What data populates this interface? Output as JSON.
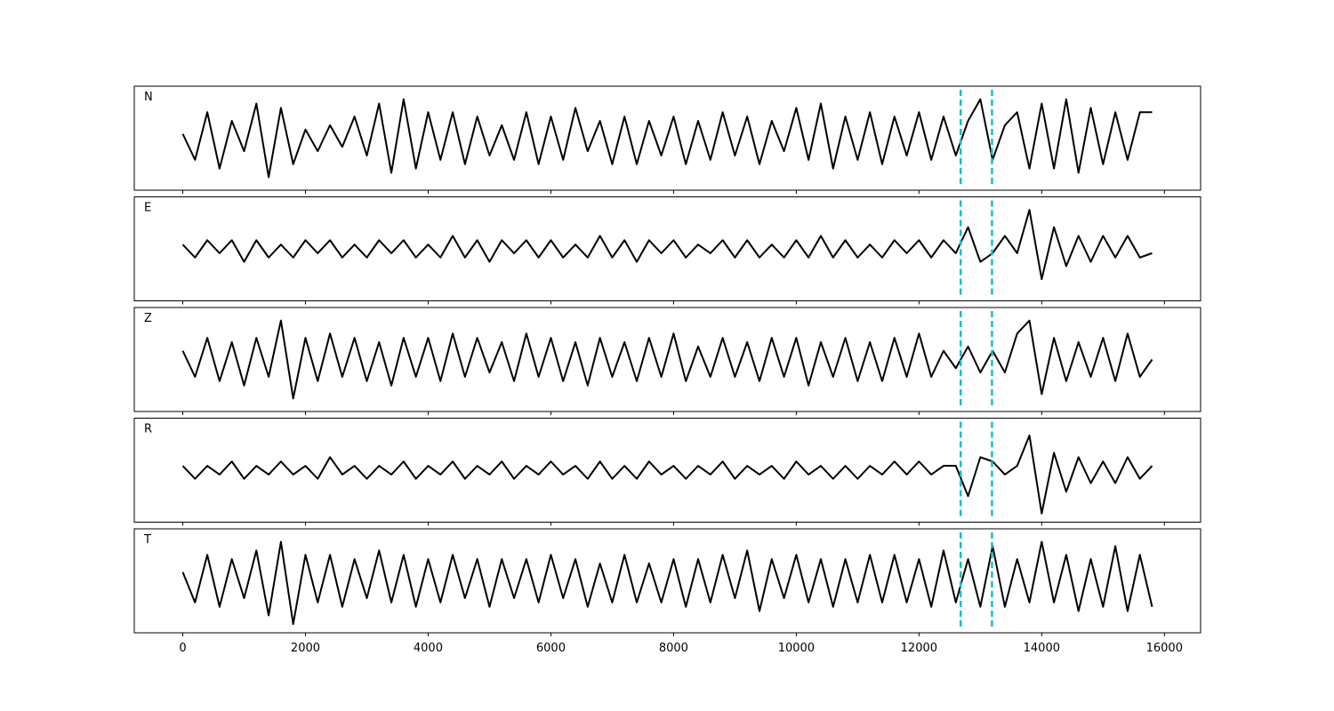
{
  "chart_data": [
    {
      "type": "line",
      "label": "N",
      "color": "#000000",
      "vlines": [
        12680,
        13190
      ],
      "vline_color": "#17becf",
      "xlim": [
        -790,
        16590
      ],
      "ylim": [
        -1.2,
        1.2
      ],
      "xticks": [
        0,
        2000,
        4000,
        6000,
        8000,
        10000,
        12000,
        14000,
        16000
      ],
      "x": [
        0,
        200,
        400,
        600,
        800,
        1000,
        1200,
        1400,
        1600,
        1800,
        2000,
        2200,
        2400,
        2600,
        2800,
        3000,
        3200,
        3400,
        3600,
        3800,
        4000,
        4200,
        4400,
        4600,
        4800,
        5000,
        5200,
        5400,
        5600,
        5800,
        6000,
        6200,
        6400,
        6600,
        6800,
        7000,
        7200,
        7400,
        7600,
        7800,
        8000,
        8200,
        8400,
        8600,
        8800,
        9000,
        9200,
        9400,
        9600,
        9800,
        10000,
        10200,
        10400,
        10600,
        10800,
        11000,
        11200,
        11400,
        11600,
        11800,
        12000,
        12200,
        12400,
        12600,
        12800,
        13000,
        13200,
        13400,
        13600,
        13800,
        14000,
        14200,
        14400,
        14600,
        14800,
        15000,
        15200,
        15400,
        15600,
        15800
      ],
      "values": [
        0.1,
        -0.5,
        0.6,
        -0.7,
        0.4,
        -0.3,
        0.8,
        -0.9,
        0.7,
        -0.6,
        0.2,
        -0.3,
        0.3,
        -0.2,
        0.5,
        -0.4,
        0.8,
        -0.8,
        0.9,
        -0.7,
        0.6,
        -0.5,
        0.6,
        -0.6,
        0.5,
        -0.4,
        0.3,
        -0.5,
        0.6,
        -0.6,
        0.5,
        -0.5,
        0.7,
        -0.3,
        0.4,
        -0.6,
        0.5,
        -0.6,
        0.4,
        -0.4,
        0.5,
        -0.6,
        0.4,
        -0.5,
        0.6,
        -0.4,
        0.5,
        -0.6,
        0.4,
        -0.3,
        0.7,
        -0.5,
        0.8,
        -0.7,
        0.5,
        -0.5,
        0.6,
        -0.6,
        0.5,
        -0.4,
        0.6,
        -0.5,
        0.5,
        -0.4,
        0.4,
        0.9,
        -0.5,
        0.3,
        0.6,
        -0.7,
        0.8,
        -0.7,
        0.9,
        -0.8,
        0.7,
        -0.6,
        0.6,
        -0.5,
        0.6,
        0.6
      ]
    },
    {
      "type": "line",
      "label": "E",
      "color": "#000000",
      "vlines": [
        12680,
        13190
      ],
      "vline_color": "#17becf",
      "xlim": [
        -790,
        16590
      ],
      "ylim": [
        -1.2,
        1.2
      ],
      "xticks": [
        0,
        2000,
        4000,
        6000,
        8000,
        10000,
        12000,
        14000,
        16000
      ],
      "x": [
        0,
        200,
        400,
        600,
        800,
        1000,
        1200,
        1400,
        1600,
        1800,
        2000,
        2200,
        2400,
        2600,
        2800,
        3000,
        3200,
        3400,
        3600,
        3800,
        4000,
        4200,
        4400,
        4600,
        4800,
        5000,
        5200,
        5400,
        5600,
        5800,
        6000,
        6200,
        6400,
        6600,
        6800,
        7000,
        7200,
        7400,
        7600,
        7800,
        8000,
        8200,
        8400,
        8600,
        8800,
        9000,
        9200,
        9400,
        9600,
        9800,
        10000,
        10200,
        10400,
        10600,
        10800,
        11000,
        11200,
        11400,
        11600,
        11800,
        12000,
        12200,
        12400,
        12600,
        12800,
        13000,
        13200,
        13400,
        13600,
        13800,
        14000,
        14200,
        14400,
        14600,
        14800,
        15000,
        15200,
        15400,
        15600,
        15800
      ],
      "values": [
        0.1,
        -0.2,
        0.2,
        -0.1,
        0.2,
        -0.3,
        0.2,
        -0.2,
        0.1,
        -0.2,
        0.2,
        -0.1,
        0.2,
        -0.2,
        0.1,
        -0.2,
        0.2,
        -0.1,
        0.2,
        -0.2,
        0.1,
        -0.2,
        0.3,
        -0.2,
        0.2,
        -0.3,
        0.2,
        -0.1,
        0.2,
        -0.2,
        0.2,
        -0.2,
        0.1,
        -0.2,
        0.3,
        -0.2,
        0.2,
        -0.3,
        0.2,
        -0.1,
        0.2,
        -0.2,
        0.1,
        -0.1,
        0.2,
        -0.2,
        0.2,
        -0.2,
        0.1,
        -0.2,
        0.2,
        -0.2,
        0.3,
        -0.2,
        0.2,
        -0.2,
        0.1,
        -0.2,
        0.2,
        -0.1,
        0.2,
        -0.2,
        0.2,
        -0.1,
        0.5,
        -0.3,
        -0.1,
        0.3,
        -0.1,
        0.9,
        -0.7,
        0.5,
        -0.4,
        0.3,
        -0.3,
        0.3,
        -0.2,
        0.3,
        -0.2,
        -0.1
      ]
    },
    {
      "type": "line",
      "label": "Z",
      "color": "#000000",
      "vlines": [
        12680,
        13190
      ],
      "vline_color": "#17becf",
      "xlim": [
        -790,
        16590
      ],
      "ylim": [
        -1.2,
        1.2
      ],
      "xticks": [
        0,
        2000,
        4000,
        6000,
        8000,
        10000,
        12000,
        14000,
        16000
      ],
      "x": [
        0,
        200,
        400,
        600,
        800,
        1000,
        1200,
        1400,
        1600,
        1800,
        2000,
        2200,
        2400,
        2600,
        2800,
        3000,
        3200,
        3400,
        3600,
        3800,
        4000,
        4200,
        4400,
        4600,
        4800,
        5000,
        5200,
        5400,
        5600,
        5800,
        6000,
        6200,
        6400,
        6600,
        6800,
        7000,
        7200,
        7400,
        7600,
        7800,
        8000,
        8200,
        8400,
        8600,
        8800,
        9000,
        9200,
        9400,
        9600,
        9800,
        10000,
        10200,
        10400,
        10600,
        10800,
        11000,
        11200,
        11400,
        11600,
        11800,
        12000,
        12200,
        12400,
        12600,
        12800,
        13000,
        13200,
        13400,
        13600,
        13800,
        14000,
        14200,
        14400,
        14600,
        14800,
        15000,
        15200,
        15400,
        15600,
        15800
      ],
      "values": [
        0.2,
        -0.4,
        0.5,
        -0.5,
        0.4,
        -0.6,
        0.5,
        -0.4,
        0.9,
        -0.9,
        0.5,
        -0.5,
        0.6,
        -0.4,
        0.5,
        -0.5,
        0.4,
        -0.6,
        0.5,
        -0.4,
        0.5,
        -0.5,
        0.6,
        -0.4,
        0.5,
        -0.3,
        0.4,
        -0.5,
        0.6,
        -0.4,
        0.5,
        -0.5,
        0.4,
        -0.6,
        0.5,
        -0.4,
        0.4,
        -0.5,
        0.5,
        -0.4,
        0.6,
        -0.5,
        0.3,
        -0.4,
        0.5,
        -0.4,
        0.4,
        -0.5,
        0.5,
        -0.4,
        0.5,
        -0.6,
        0.4,
        -0.4,
        0.5,
        -0.5,
        0.4,
        -0.5,
        0.5,
        -0.4,
        0.6,
        -0.4,
        0.2,
        -0.2,
        0.3,
        -0.3,
        0.2,
        -0.3,
        0.6,
        0.9,
        -0.8,
        0.5,
        -0.5,
        0.4,
        -0.4,
        0.5,
        -0.5,
        0.6,
        -0.4,
        0.0
      ]
    },
    {
      "type": "line",
      "label": "R",
      "color": "#000000",
      "vlines": [
        12680,
        13190
      ],
      "vline_color": "#17becf",
      "xlim": [
        -790,
        16590
      ],
      "ylim": [
        -1.2,
        1.2
      ],
      "xticks": [
        0,
        2000,
        4000,
        6000,
        8000,
        10000,
        12000,
        14000,
        16000
      ],
      "x": [
        0,
        200,
        400,
        600,
        800,
        1000,
        1200,
        1400,
        1600,
        1800,
        2000,
        2200,
        2400,
        2600,
        2800,
        3000,
        3200,
        3400,
        3600,
        3800,
        4000,
        4200,
        4400,
        4600,
        4800,
        5000,
        5200,
        5400,
        5600,
        5800,
        6000,
        6200,
        6400,
        6600,
        6800,
        7000,
        7200,
        7400,
        7600,
        7800,
        8000,
        8200,
        8400,
        8600,
        8800,
        9000,
        9200,
        9400,
        9600,
        9800,
        10000,
        10200,
        10400,
        10600,
        10800,
        11000,
        11200,
        11400,
        11600,
        11800,
        12000,
        12200,
        12400,
        12600,
        12800,
        13000,
        13200,
        13400,
        13600,
        13800,
        14000,
        14200,
        14400,
        14600,
        14800,
        15000,
        15200,
        15400,
        15600,
        15800
      ],
      "values": [
        0.1,
        -0.2,
        0.1,
        -0.1,
        0.2,
        -0.2,
        0.1,
        -0.1,
        0.2,
        -0.1,
        0.1,
        -0.2,
        0.3,
        -0.1,
        0.1,
        -0.2,
        0.1,
        -0.1,
        0.2,
        -0.2,
        0.1,
        -0.1,
        0.2,
        -0.2,
        0.1,
        -0.1,
        0.2,
        -0.2,
        0.1,
        -0.1,
        0.2,
        -0.1,
        0.1,
        -0.2,
        0.2,
        -0.2,
        0.1,
        -0.2,
        0.2,
        -0.1,
        0.1,
        -0.2,
        0.1,
        -0.1,
        0.2,
        -0.2,
        0.1,
        -0.1,
        0.1,
        -0.2,
        0.2,
        -0.1,
        0.1,
        -0.2,
        0.1,
        -0.2,
        0.1,
        -0.1,
        0.2,
        -0.1,
        0.2,
        -0.1,
        0.1,
        0.1,
        -0.6,
        0.3,
        0.2,
        -0.1,
        0.1,
        0.8,
        -1.0,
        0.4,
        -0.5,
        0.3,
        -0.3,
        0.2,
        -0.3,
        0.3,
        -0.2,
        0.1
      ]
    },
    {
      "type": "line",
      "label": "T",
      "color": "#000000",
      "vlines": [
        12680,
        13190
      ],
      "vline_color": "#17becf",
      "xlim": [
        -790,
        16590
      ],
      "ylim": [
        -1.2,
        1.2
      ],
      "xticks": [
        0,
        2000,
        4000,
        6000,
        8000,
        10000,
        12000,
        14000,
        16000
      ],
      "x": [
        0,
        200,
        400,
        600,
        800,
        1000,
        1200,
        1400,
        1600,
        1800,
        2000,
        2200,
        2400,
        2600,
        2800,
        3000,
        3200,
        3400,
        3600,
        3800,
        4000,
        4200,
        4400,
        4600,
        4800,
        5000,
        5200,
        5400,
        5600,
        5800,
        6000,
        6200,
        6400,
        6600,
        6800,
        7000,
        7200,
        7400,
        7600,
        7800,
        8000,
        8200,
        8400,
        8600,
        8800,
        9000,
        9200,
        9400,
        9600,
        9800,
        10000,
        10200,
        10400,
        10600,
        10800,
        11000,
        11200,
        11400,
        11600,
        11800,
        12000,
        12200,
        12400,
        12600,
        12800,
        13000,
        13200,
        13400,
        13600,
        13800,
        14000,
        14200,
        14400,
        14600,
        14800,
        15000,
        15200,
        15400,
        15600,
        15800
      ],
      "values": [
        0.2,
        -0.5,
        0.6,
        -0.6,
        0.5,
        -0.4,
        0.7,
        -0.8,
        0.9,
        -1.0,
        0.6,
        -0.5,
        0.6,
        -0.6,
        0.5,
        -0.4,
        0.7,
        -0.5,
        0.6,
        -0.6,
        0.5,
        -0.5,
        0.6,
        -0.4,
        0.5,
        -0.6,
        0.5,
        -0.4,
        0.5,
        -0.5,
        0.6,
        -0.4,
        0.5,
        -0.6,
        0.4,
        -0.5,
        0.6,
        -0.5,
        0.4,
        -0.5,
        0.5,
        -0.6,
        0.5,
        -0.5,
        0.6,
        -0.4,
        0.7,
        -0.7,
        0.5,
        -0.4,
        0.6,
        -0.5,
        0.5,
        -0.6,
        0.5,
        -0.5,
        0.6,
        -0.5,
        0.6,
        -0.5,
        0.5,
        -0.6,
        0.7,
        -0.5,
        0.5,
        -0.6,
        0.8,
        -0.6,
        0.5,
        -0.5,
        0.9,
        -0.5,
        0.6,
        -0.7,
        0.5,
        -0.6,
        0.8,
        -0.7,
        0.6,
        -0.6
      ]
    }
  ]
}
